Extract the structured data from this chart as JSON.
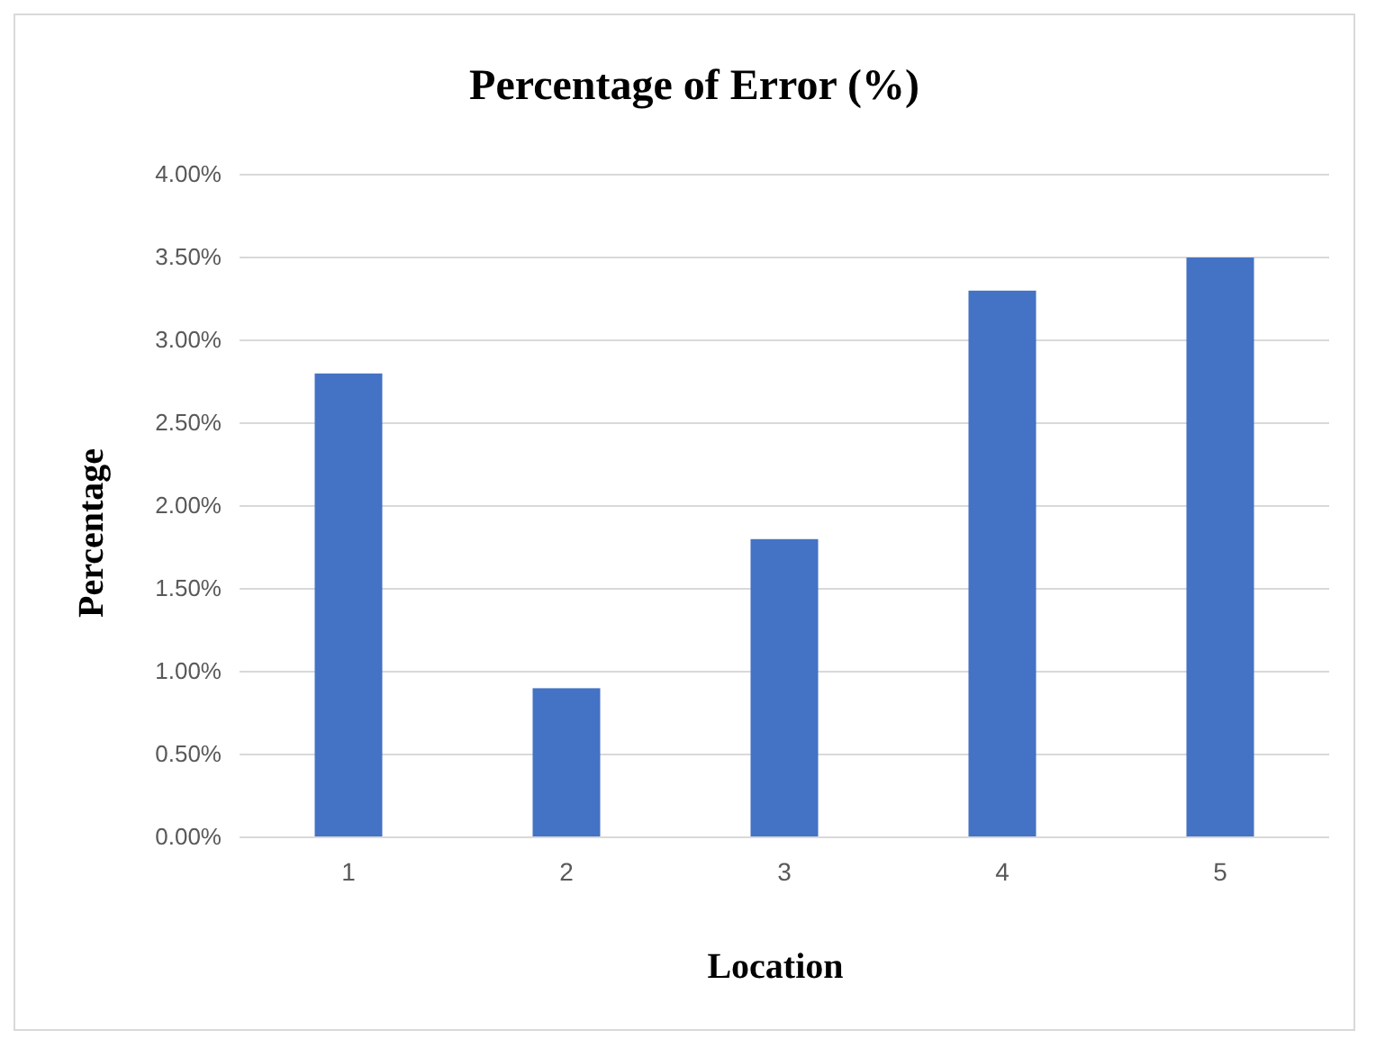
{
  "chart_data": {
    "type": "bar",
    "title": "Percentage of Error (%)",
    "xlabel": "Location",
    "ylabel": "Percentage",
    "categories": [
      "1",
      "2",
      "3",
      "4",
      "5"
    ],
    "values": [
      2.8,
      0.9,
      1.8,
      3.3,
      3.5
    ],
    "color": "#4472c4",
    "ylim": [
      0,
      4
    ],
    "yticks": [
      {
        "value": 0,
        "label": "0.00%"
      },
      {
        "value": 0.5,
        "label": "0.50%"
      },
      {
        "value": 1,
        "label": "1.00%"
      },
      {
        "value": 1.5,
        "label": "1.50%"
      },
      {
        "value": 2,
        "label": "2.00%"
      },
      {
        "value": 2.5,
        "label": "2.50%"
      },
      {
        "value": 3,
        "label": "3.00%"
      },
      {
        "value": 3.5,
        "label": "3.50%"
      },
      {
        "value": 4,
        "label": "4.00%"
      }
    ],
    "grid": "y"
  }
}
